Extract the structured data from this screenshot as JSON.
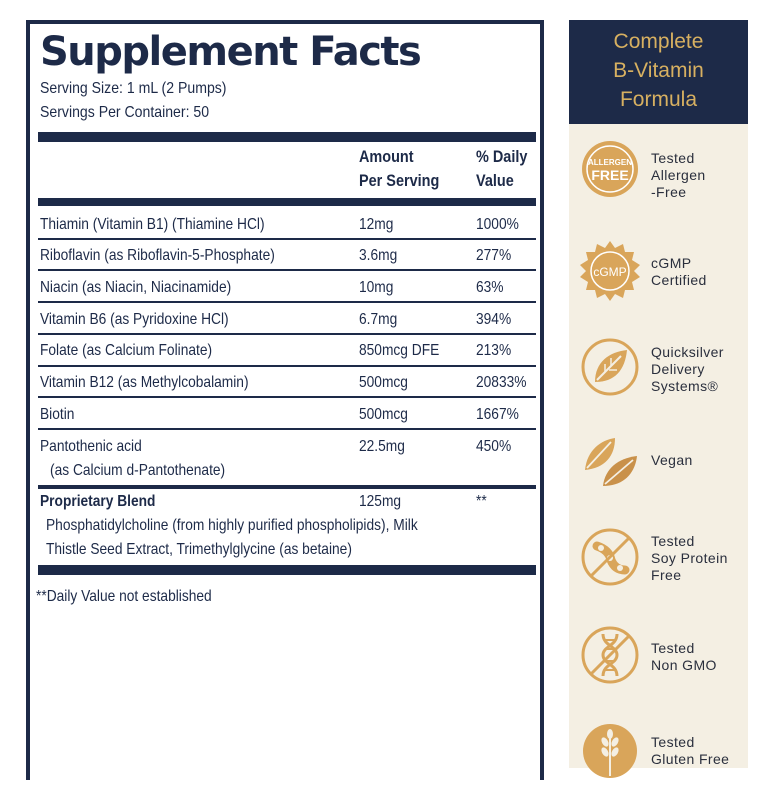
{
  "facts": {
    "title": "Supplement Facts",
    "serving_size": "Serving Size: 1 mL (2 Pumps)",
    "servings_per_container": "Servings Per Container: 50",
    "header": {
      "amount_line1": "Amount",
      "amount_line2": "Per Serving",
      "dv_line1": "% Daily",
      "dv_line2": "Value"
    },
    "rows": [
      {
        "name": "Thiamin (Vitamin B1) (Thiamine HCl)",
        "amount": "12mg",
        "dv": "1000%"
      },
      {
        "name": "Riboflavin (as Riboflavin-5-Phosphate)",
        "amount": "3.6mg",
        "dv": "277%"
      },
      {
        "name": "Niacin (as Niacin, Niacinamide)",
        "amount": "10mg",
        "dv": "63%"
      },
      {
        "name": "Vitamin B6 (as Pyridoxine HCl)",
        "amount": "6.7mg",
        "dv": "394%"
      },
      {
        "name": "Folate  (as Calcium Folinate)",
        "amount": "850mcg DFE",
        "dv": "213%"
      },
      {
        "name": "Vitamin B12 (as Methylcobalamin)",
        "amount": "500mcg",
        "dv": "20833%"
      },
      {
        "name": "Biotin",
        "amount": "500mcg",
        "dv": "1667%"
      },
      {
        "name": "Pantothenic acid",
        "name_line2": "(as Calcium d-Pantothenate)",
        "amount": "22.5mg",
        "dv": "450%"
      }
    ],
    "blend": {
      "name": "Proprietary Blend",
      "amount": "125mg",
      "dv": "**",
      "line1": "Phosphatidylcholine (from highly purified phospholipids), Milk",
      "line2": "Thistle Seed Extract, Trimethylglycine (as betaine)"
    },
    "footnote": "**Daily Value not established"
  },
  "side": {
    "heading": [
      "Complete",
      "B-Vitamin",
      "Formula"
    ],
    "badges": [
      {
        "icon": "allergen-free-icon",
        "icon_text": [
          "ALLERGEN",
          "FREE"
        ],
        "label": "Tested\nAllergen\n-Free"
      },
      {
        "icon": "cgmp-seal-icon",
        "icon_text": [
          "cGMP"
        ],
        "label": "cGMP\nCertified"
      },
      {
        "icon": "quicksilver-leaf-icon",
        "label": "Quicksilver\nDelivery\nSystems®"
      },
      {
        "icon": "vegan-leaf-icon",
        "label": "Vegan"
      },
      {
        "icon": "soy-free-icon",
        "label": "Tested\nSoy Protein\nFree"
      },
      {
        "icon": "non-gmo-dna-icon",
        "label": "Tested\nNon GMO"
      },
      {
        "icon": "gluten-free-wheat-icon",
        "label": "Tested\nGluten Free"
      }
    ],
    "colors": {
      "gold": "#d9a55a",
      "navy": "#1d2a48",
      "cream": "#f4efe3"
    }
  }
}
